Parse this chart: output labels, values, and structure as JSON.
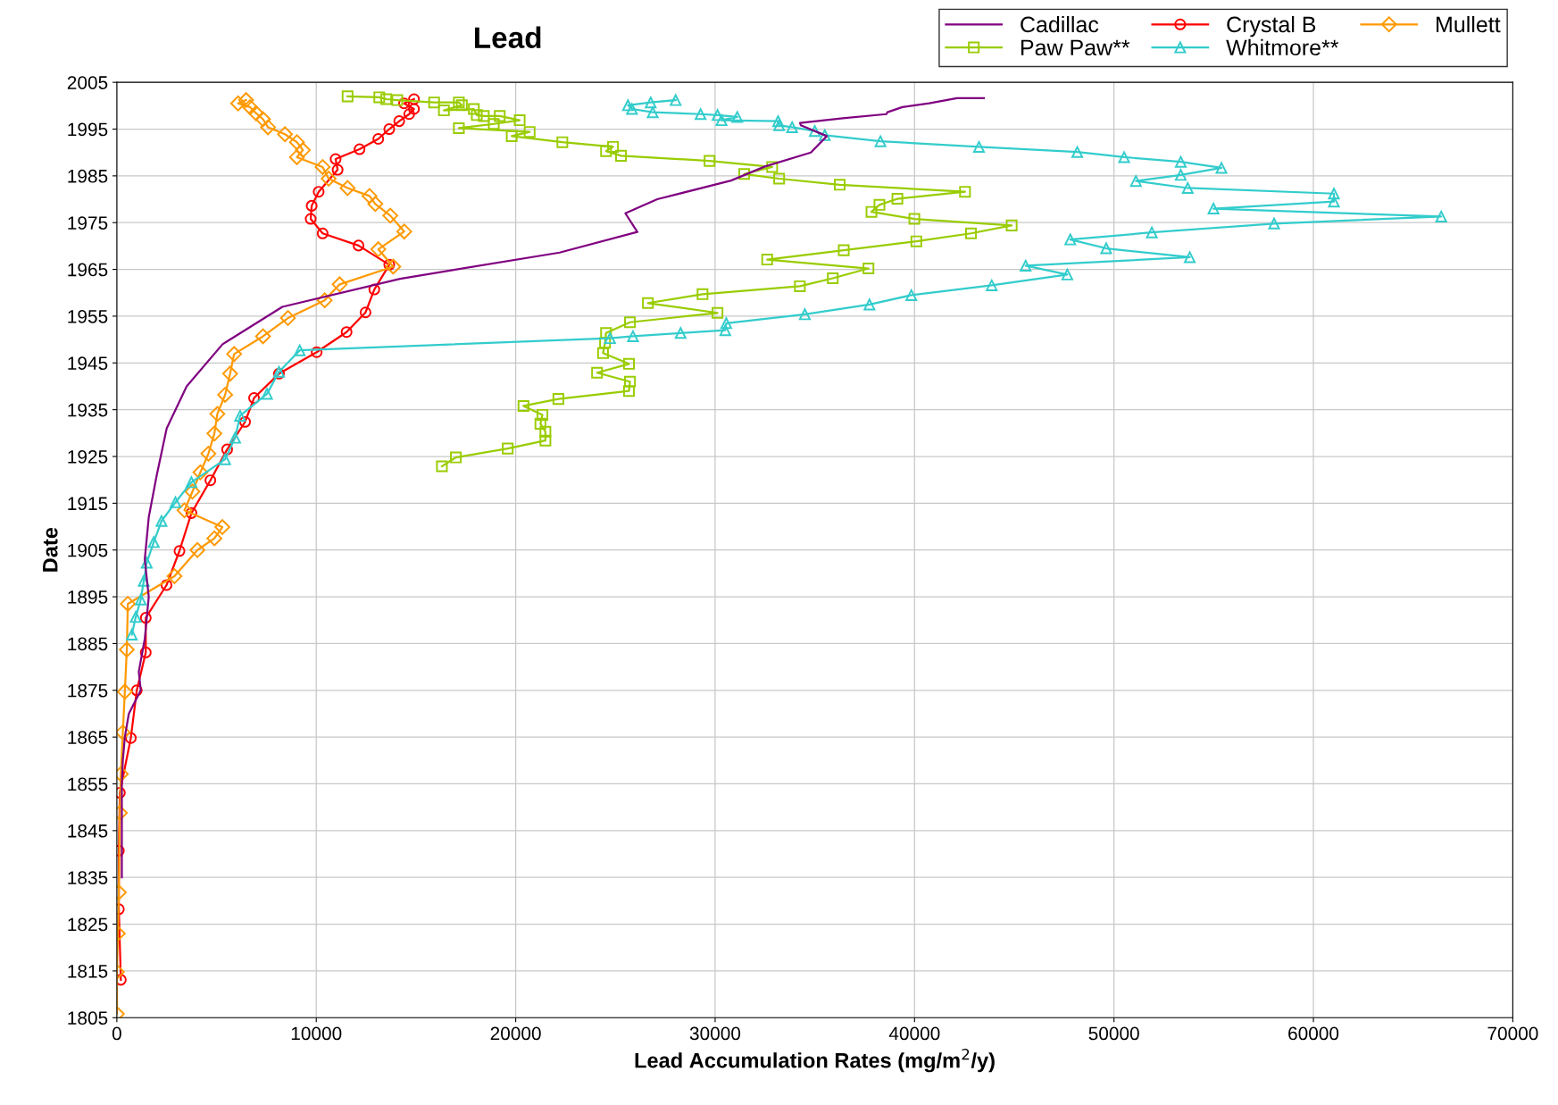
{
  "chart_data": {
    "type": "line",
    "title": "Lead",
    "xlabel": "Lead Accumulation Rates (mg/m$^{2}$/y)",
    "ylabel": "Date",
    "xlim": [
      0,
      70000
    ],
    "xticks": [
      0,
      10000,
      20000,
      30000,
      40000,
      50000,
      60000,
      70000
    ],
    "ylim": [
      1805,
      2005
    ],
    "yticks": [
      1805,
      1815,
      1825,
      1835,
      1845,
      1855,
      1865,
      1875,
      1885,
      1895,
      1905,
      1915,
      1925,
      1935,
      1945,
      1955,
      1965,
      1975,
      1985,
      1995,
      2005
    ],
    "grid": true,
    "legend": "top right",
    "line_style": "solid",
    "series": [
      {
        "name": "Cadillac",
        "color": "#800080",
        "marker": "none",
        "x": [
          43480,
          42130,
          40730,
          39390,
          38640,
          38590,
          36400,
          34260,
          34300,
          35600,
          34800,
          32500,
          30800,
          27100,
          25500,
          26100,
          22200,
          14200,
          8300,
          5300,
          3500,
          2500,
          2000,
          1600,
          1400,
          1600,
          1400,
          1100,
          1200,
          600,
          400,
          300,
          250,
          250,
          250,
          250,
          250
        ],
        "values": [
          2001.6,
          2001.6,
          2000.5,
          1999.7,
          1998.6,
          1998.2,
          1997.3,
          1996.3,
          1995.8,
          1993.5,
          1990,
          1987,
          1984,
          1980,
          1977,
          1973,
          1968.6,
          1963,
          1957,
          1949,
          1940,
          1931,
          1921,
          1912,
          1903,
          1895,
          1886,
          1879,
          1875,
          1870,
          1865,
          1860,
          1855,
          1850,
          1845,
          1840,
          1835
        ]
      },
      {
        "name": "Crystal B",
        "color": "#ff0000",
        "marker": "circle",
        "x": [
          14900,
          14400,
          14900,
          14660,
          14160,
          13660,
          13110,
          12170,
          10970,
          11070,
          10120,
          9770,
          9720,
          10320,
          12120,
          13660,
          12910,
          12470,
          11520,
          10020,
          8130,
          6880,
          6430,
          5530,
          4690,
          3740,
          3140,
          2490,
          1450,
          1450,
          1000,
          700,
          150,
          100,
          100,
          200
        ],
        "values": [
          2001.4,
          2000.5,
          1999.3,
          1998.2,
          1996.7,
          1995,
          1992.9,
          1990.7,
          1988.6,
          1986.3,
          1981.6,
          1978.6,
          1975.8,
          1972.7,
          1970.1,
          1966,
          1960.7,
          1955.8,
          1951.6,
          1947.3,
          1942.7,
          1937.5,
          1932.4,
          1926.5,
          1919.9,
          1912.9,
          1904.8,
          1897.5,
          1890.5,
          1883.1,
          1875,
          1864.8,
          1853.1,
          1840.7,
          1828.2,
          1813.1
        ]
      },
      {
        "name": "Mullett",
        "color": "#ff9900",
        "marker": "diamond",
        "x": [
          6480,
          6080,
          6680,
          6980,
          7330,
          7580,
          8430,
          9030,
          9330,
          9030,
          10320,
          10620,
          11570,
          12670,
          12960,
          13710,
          14410,
          13110,
          13860,
          11170,
          10420,
          8580,
          7330,
          5880,
          5680,
          5430,
          5040,
          4890,
          4590,
          4190,
          3790,
          3390,
          5290,
          4890,
          4040,
          2890,
          550,
          500,
          400,
          300,
          200,
          150,
          100,
          50,
          0,
          0
        ],
        "values": [
          2001.2,
          2000.5,
          1999.7,
          1998.4,
          1997.1,
          1995.4,
          1993.9,
          1992.2,
          1990.5,
          1989,
          1986.9,
          1984.4,
          1982.4,
          1980.7,
          1979,
          1976.5,
          1973.1,
          1969.3,
          1965.6,
          1961.8,
          1958.4,
          1954.6,
          1950.7,
          1946.9,
          1942.7,
          1938.2,
          1934.1,
          1929.9,
          1925.6,
          1921.6,
          1917.5,
          1913.5,
          1909.9,
          1907.5,
          1905,
          1899.4,
          1893.5,
          1883.7,
          1874.7,
          1866,
          1857.1,
          1848.8,
          1831.8,
          1823,
          1814.8,
          1805.8
        ]
      },
      {
        "name": "Paw Paw**",
        "color": "#99cc00",
        "marker": "square",
        "x": [
          11570,
          13160,
          13510,
          14060,
          15910,
          17150,
          17300,
          16400,
          17900,
          18050,
          18400,
          19200,
          20200,
          18900,
          17150,
          20700,
          19800,
          22340,
          24880,
          24530,
          25280,
          29720,
          32860,
          31460,
          33210,
          36250,
          42530,
          39140,
          38240,
          37840,
          39990,
          44870,
          42830,
          40090,
          36450,
          32610,
          37690,
          35900,
          34250,
          29370,
          26630,
          30120,
          25730,
          24530,
          24480,
          24380,
          25680,
          24080,
          25730,
          25680,
          22140,
          20390,
          21340,
          21240,
          21490,
          21490,
          19600,
          17000,
          16300
        ],
        "values": [
          2002,
          2001.8,
          2001.4,
          2001.2,
          2000.7,
          2000.7,
          2000.1,
          1999,
          1999.3,
          1998,
          1997.8,
          1997.8,
          1996.9,
          1996.1,
          1995.2,
          1994.4,
          1993.5,
          1992.2,
          1991.2,
          1990.3,
          1989.3,
          1988.2,
          1986.9,
          1985.4,
          1984.4,
          1983.1,
          1981.6,
          1980.1,
          1978.8,
          1977.3,
          1975.8,
          1974.4,
          1972.7,
          1971,
          1969.1,
          1967.1,
          1965.2,
          1963.1,
          1961.4,
          1959.7,
          1957.8,
          1955.7,
          1953.7,
          1951.4,
          1949.3,
          1947.1,
          1944.8,
          1942.9,
          1941,
          1939,
          1937.3,
          1935.8,
          1933.9,
          1932,
          1930.3,
          1928.4,
          1926.7,
          1924.8,
          1922.9
        ]
      },
      {
        "name": "Whitmore**",
        "color": "#33cccc",
        "marker": "triangle",
        "x": [
          28020,
          26770,
          25630,
          25830,
          26870,
          29270,
          30120,
          31110,
          30320,
          33160,
          33210,
          33860,
          35000,
          35500,
          38290,
          43230,
          48160,
          50510,
          53350,
          55390,
          53350,
          51100,
          53700,
          61030,
          61030,
          54990,
          66410,
          58030,
          51900,
          47810,
          49610,
          53800,
          45570,
          47660,
          43870,
          39840,
          37740,
          34500,
          30560,
          30510,
          28270,
          25880,
          24730,
          9170,
          8130,
          7530,
          6180,
          5930,
          5430,
          3740,
          2940,
          2240,
          1850,
          1500,
          1350,
          1200,
          950,
          750
        ],
        "values": [
          2001.2,
          2000.7,
          2000.1,
          1999.3,
          1998.6,
          1998.2,
          1998,
          1997.6,
          1996.9,
          1996.7,
          1995.8,
          1995.4,
          1994.6,
          1993.7,
          1992.4,
          1991.2,
          1990.1,
          1989,
          1988,
          1986.7,
          1985.2,
          1983.9,
          1982.4,
          1981.2,
          1979.5,
          1978,
          1976.3,
          1974.8,
          1972.9,
          1971.4,
          1969.5,
          1967.6,
          1965.8,
          1963.9,
          1961.6,
          1959.5,
          1957.5,
          1955.4,
          1953.5,
          1952,
          1951.4,
          1950.7,
          1950.3,
          1947.7,
          1943.1,
          1938.4,
          1933.7,
          1929,
          1924.4,
          1919.5,
          1915.2,
          1911.2,
          1906.7,
          1902.3,
          1898.4,
          1894.4,
          1890.7,
          1886.9
        ]
      }
    ]
  }
}
